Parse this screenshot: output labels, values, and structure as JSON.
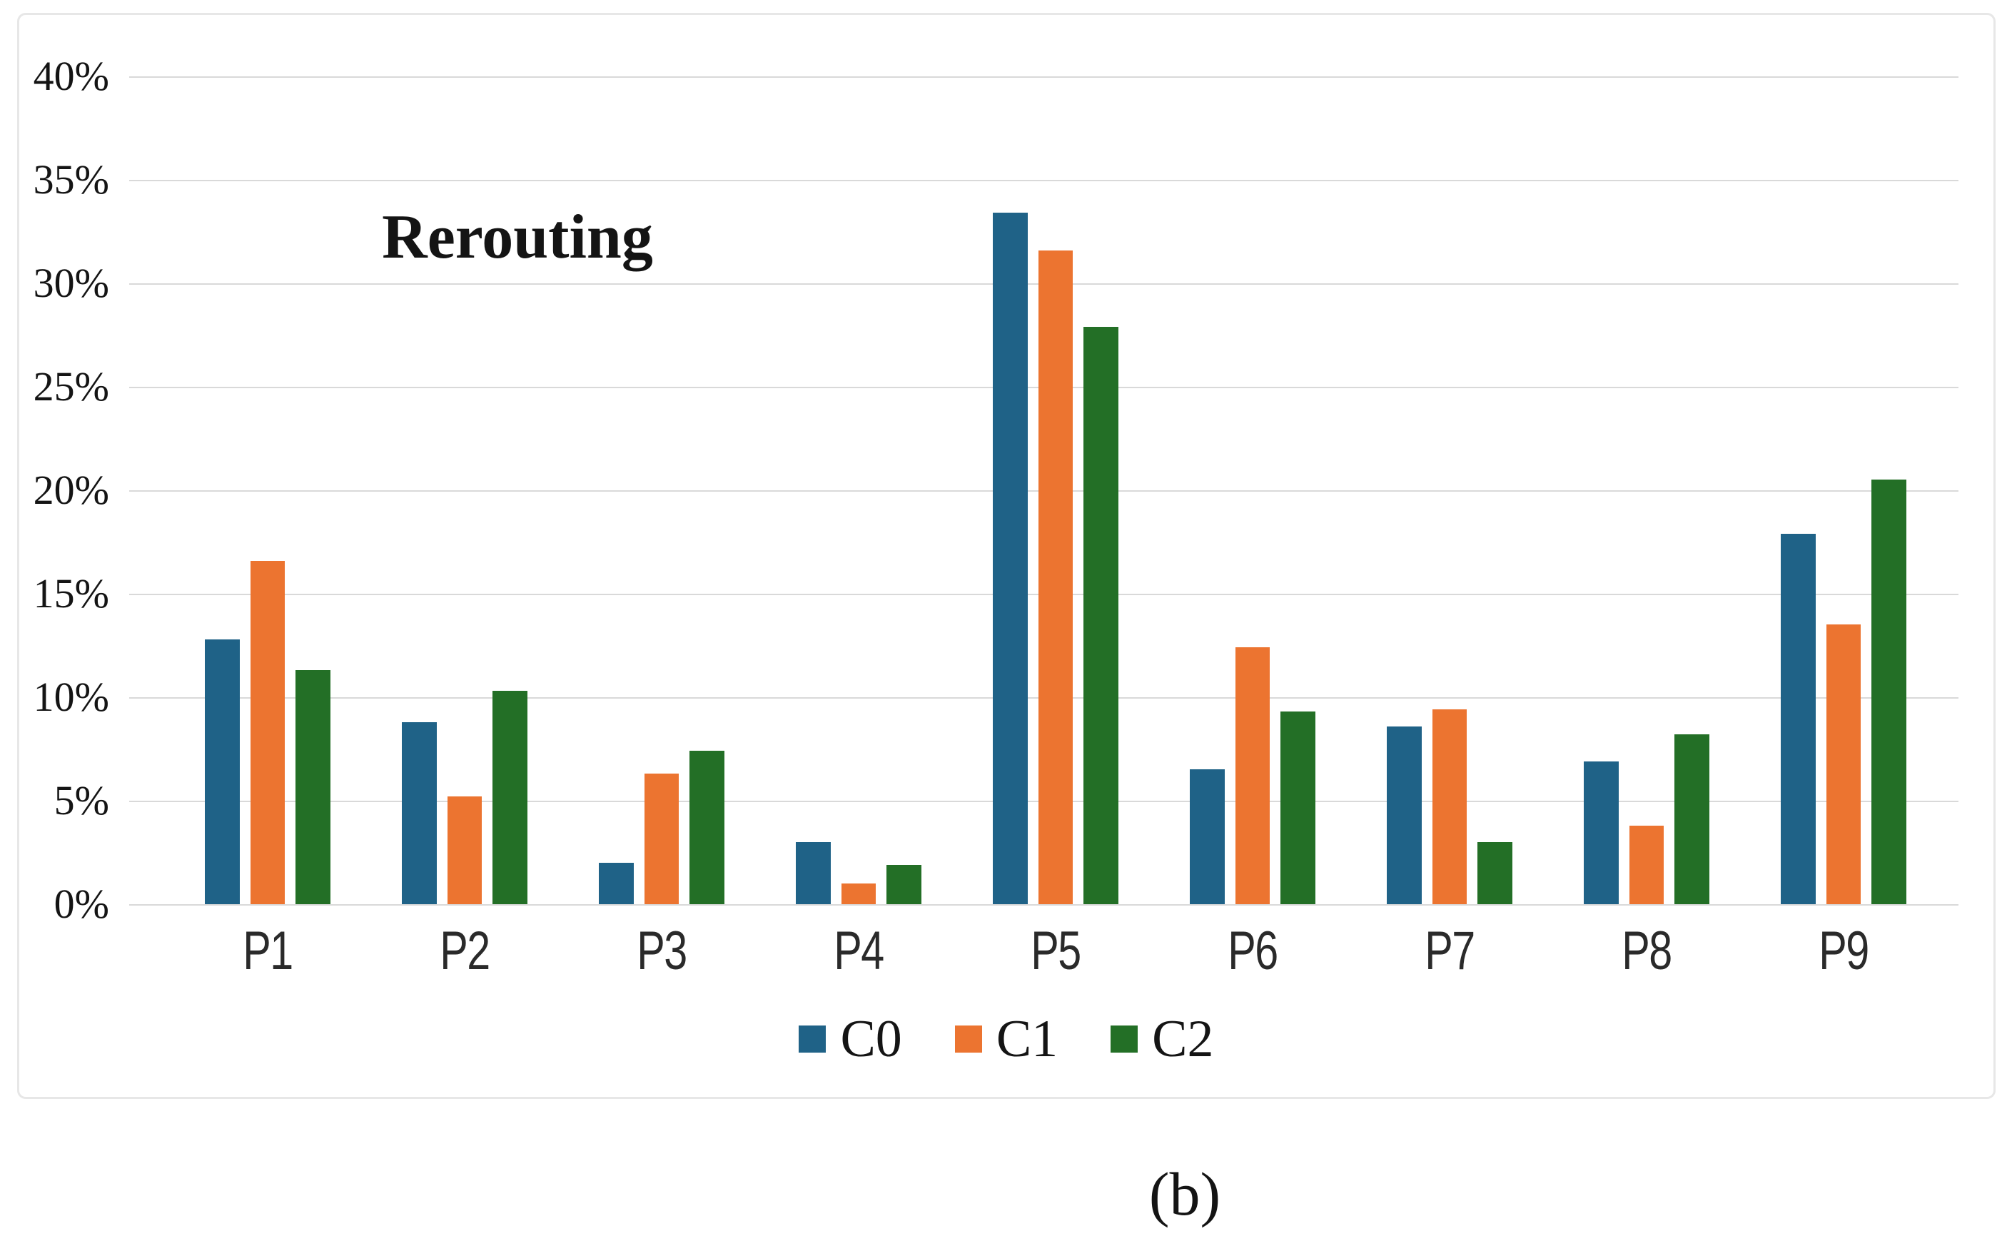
{
  "figure": {
    "panel_label": "(b)"
  },
  "chart_data": {
    "type": "bar",
    "title": "Rerouting",
    "categories": [
      "P1",
      "P2",
      "P3",
      "P4",
      "P5",
      "P6",
      "P7",
      "P8",
      "P9"
    ],
    "series": [
      {
        "name": "C0",
        "color": "#1f6287",
        "values": [
          12.8,
          8.8,
          2.0,
          3.0,
          33.4,
          6.5,
          8.6,
          6.9,
          17.9
        ]
      },
      {
        "name": "C1",
        "color": "#ec7430",
        "values": [
          16.6,
          5.2,
          6.3,
          1.0,
          31.6,
          12.4,
          9.4,
          3.8,
          13.5
        ]
      },
      {
        "name": "C2",
        "color": "#236f26",
        "values": [
          11.3,
          10.3,
          7.4,
          1.9,
          27.9,
          9.3,
          3.0,
          8.2,
          20.5
        ]
      }
    ],
    "ylabel": "",
    "xlabel": "",
    "ylim": [
      0,
      40
    ],
    "ytick_step": 5,
    "yticks": [
      "0%",
      "5%",
      "10%",
      "15%",
      "20%",
      "25%",
      "30%",
      "35%",
      "40%"
    ],
    "grid": true,
    "legend_position": "bottom",
    "gridline_color": "#d9d9d9",
    "card_border_color": "#e7e7e7",
    "text_color": "#141414"
  }
}
